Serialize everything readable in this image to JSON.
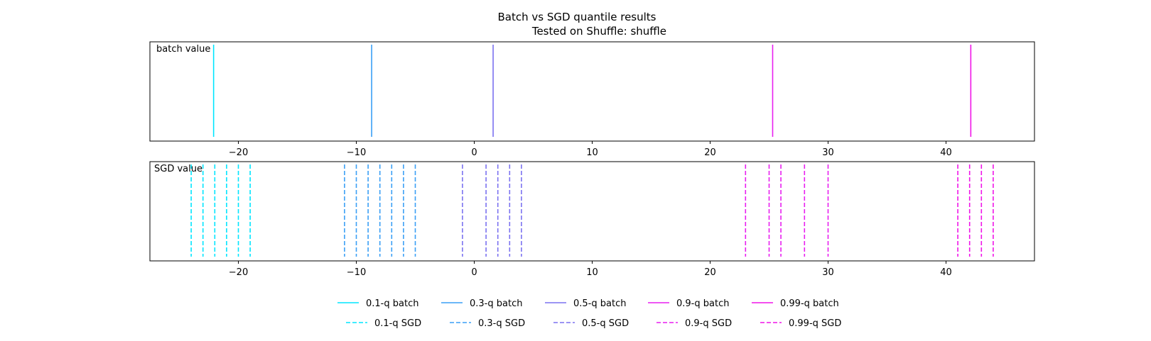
{
  "chart_data": {
    "type": "line",
    "title": "Batch vs SGD quantile results",
    "subtitle": "Tested on Shuffle: shuffle",
    "xlim": [
      -27.5,
      47.5
    ],
    "xticks": [
      -20,
      -10,
      0,
      10,
      20,
      30,
      40
    ],
    "xtick_labels": [
      "−20",
      "−10",
      "0",
      "10",
      "20",
      "30",
      "40"
    ],
    "grid": false,
    "legend_placement": "bottom-center",
    "panels": [
      {
        "label": "batch value",
        "line_style": "solid",
        "series": [
          {
            "name": "0.1-q batch",
            "color": "#00e5ff",
            "x": [
              -22.1
            ]
          },
          {
            "name": "0.3-q batch",
            "color": "#3a9ff5",
            "x": [
              -8.7
            ]
          },
          {
            "name": "0.5-q batch",
            "color": "#7b72f0",
            "x": [
              1.6
            ]
          },
          {
            "name": "0.9-q batch",
            "color": "#e81ff0",
            "x": [
              25.3
            ]
          },
          {
            "name": "0.99-q batch",
            "color": "#f014e8",
            "x": [
              42.1
            ]
          }
        ]
      },
      {
        "label": "SGD value",
        "line_style": "dashed",
        "series": [
          {
            "name": "0.1-q SGD",
            "color": "#00e5ff",
            "x": [
              -24,
              -23,
              -22,
              -21,
              -20,
              -19
            ]
          },
          {
            "name": "0.3-q SGD",
            "color": "#3a9ff5",
            "x": [
              -11,
              -10,
              -9,
              -8,
              -7,
              -6,
              -5
            ]
          },
          {
            "name": "0.5-q SGD",
            "color": "#7b72f0",
            "x": [
              -1,
              1,
              2,
              3,
              4
            ]
          },
          {
            "name": "0.9-q SGD",
            "color": "#e81ff0",
            "x": [
              23,
              25,
              26,
              28,
              30
            ]
          },
          {
            "name": "0.99-q SGD",
            "color": "#f014e8",
            "x": [
              41,
              42,
              43,
              44
            ]
          }
        ]
      }
    ]
  }
}
